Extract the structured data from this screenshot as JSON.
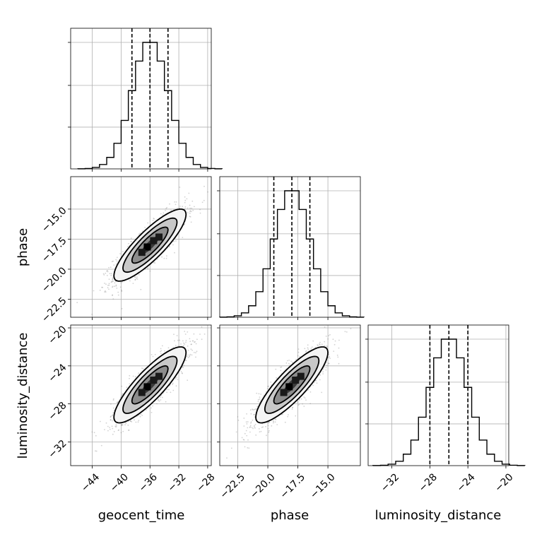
{
  "chart_data": {
    "type": "corner",
    "parameters": [
      {
        "name": "geocent_time",
        "axis_label": "geocent_time",
        "range": [
          -47,
          -27.5
        ],
        "ticks": [
          -44,
          -40,
          -36,
          -32,
          -28
        ],
        "tick_labels": [
          "−44",
          "−40",
          "−36",
          "−32",
          "−28"
        ],
        "mean": -36,
        "sigma": 2.5,
        "quantiles": [
          -38.5,
          -36,
          -33.5
        ]
      },
      {
        "name": "phase",
        "axis_label": "phase",
        "range": [
          -24,
          -12.3
        ],
        "ticks": [
          -22.5,
          -20.0,
          -17.5,
          -15.0
        ],
        "tick_labels": [
          "−22.5",
          "−20.0",
          "−17.5",
          "−15.0"
        ],
        "mean": -18,
        "sigma": 1.5,
        "quantiles": [
          -19.5,
          -18,
          -16.5
        ]
      },
      {
        "name": "luminosity_distance",
        "axis_label": "luminosity_distance",
        "range": [
          -34.5,
          -19.7
        ],
        "ticks": [
          -32,
          -28,
          -24,
          -20
        ],
        "tick_labels": [
          "−32",
          "−28",
          "−24",
          "−20"
        ],
        "mean": -26,
        "sigma": 2.0,
        "quantiles": [
          -28,
          -26,
          -24
        ]
      }
    ],
    "correlation": 0.85,
    "grid": true,
    "contour_levels_sigma": [
      0.5,
      1.0,
      1.5,
      2.0
    ]
  }
}
